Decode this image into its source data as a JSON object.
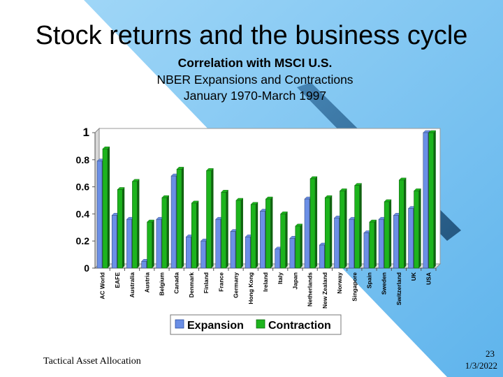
{
  "slide": {
    "title": "Stock returns and the business cycle",
    "subtitle_lines": [
      "Correlation with MSCI U.S.",
      "NBER Expansions and Contractions",
      "January 1970-March 1997"
    ],
    "footer": "Tactical Asset Allocation",
    "page_number": "23",
    "date": "1/3/2022"
  },
  "colors": {
    "expansion": "#6b8fe6",
    "contraction": "#1db41d",
    "background_accent": "#8ec9f2"
  },
  "chart_data": {
    "type": "bar",
    "title": "Correlation with MSCI U.S.",
    "subtitle": [
      "NBER Expansions and Contractions",
      "January 1970-March 1997"
    ],
    "xlabel": "",
    "ylabel": "",
    "ylim": [
      0,
      1
    ],
    "yticks": [
      "0",
      "0.2",
      "0.4",
      "0.6",
      "0.8",
      "1"
    ],
    "grid": false,
    "legend_position": "bottom",
    "categories": [
      "AC World",
      "EAFE",
      "Australia",
      "Austria",
      "Belgium",
      "Canada",
      "Denmark",
      "Finland",
      "France",
      "Germany",
      "Hong Kong",
      "Ireland",
      "Italy",
      "Japan",
      "Netherlands",
      "New Zealand",
      "Norway",
      "Singapore",
      "Spain",
      "Sweden",
      "Switzerland",
      "UK",
      "USA"
    ],
    "series": [
      {
        "name": "Expansion",
        "values": [
          0.79,
          0.39,
          0.36,
          0.05,
          0.36,
          0.68,
          0.23,
          0.2,
          0.36,
          0.27,
          0.23,
          0.42,
          0.14,
          0.22,
          0.51,
          0.17,
          0.37,
          0.36,
          0.26,
          0.36,
          0.39,
          0.44,
          1.0
        ]
      },
      {
        "name": "Contraction",
        "values": [
          0.88,
          0.58,
          0.64,
          0.34,
          0.52,
          0.73,
          0.48,
          0.72,
          0.56,
          0.5,
          0.47,
          0.51,
          0.4,
          0.31,
          0.66,
          0.52,
          0.57,
          0.61,
          0.34,
          0.49,
          0.65,
          0.57,
          1.0
        ]
      }
    ]
  }
}
